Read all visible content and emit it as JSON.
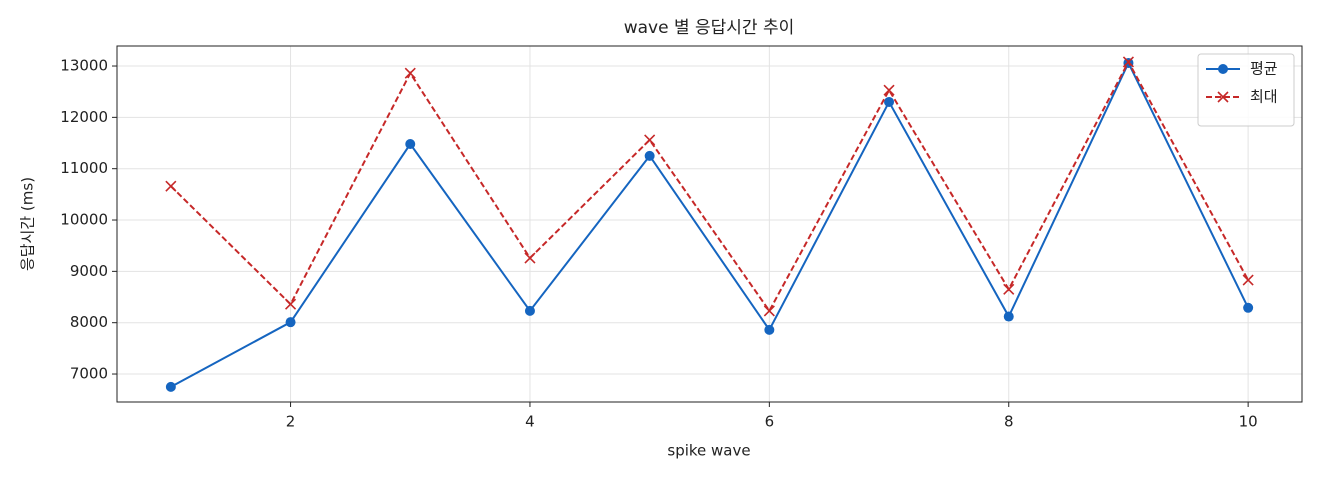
{
  "chart_data": {
    "type": "line",
    "title": "wave 별 응답시간 추이",
    "x_label": "spike wave",
    "y_label": "응답시간 (ms)",
    "x": [
      1,
      2,
      3,
      4,
      5,
      6,
      7,
      8,
      9,
      10
    ],
    "series": [
      {
        "name": "평균",
        "color": "#1565c0",
        "marker": "o",
        "linestyle": "solid",
        "values": [
          6750,
          8010,
          11480,
          8230,
          11250,
          7860,
          12300,
          8120,
          13060,
          8290
        ]
      },
      {
        "name": "최대",
        "color": "#c62828",
        "marker": "x",
        "linestyle": "dashed",
        "values": [
          10660,
          8360,
          12860,
          9260,
          11560,
          8230,
          12530,
          8650,
          13080,
          8830
        ]
      }
    ],
    "xlim": [
      0.55,
      10.45
    ],
    "xticks": [
      2,
      4,
      6,
      8,
      10
    ],
    "ylim": [
      6455,
      13390
    ],
    "yticks": [
      7000,
      8000,
      9000,
      10000,
      11000,
      12000,
      13000
    ],
    "grid": true,
    "legend": "upper right"
  }
}
